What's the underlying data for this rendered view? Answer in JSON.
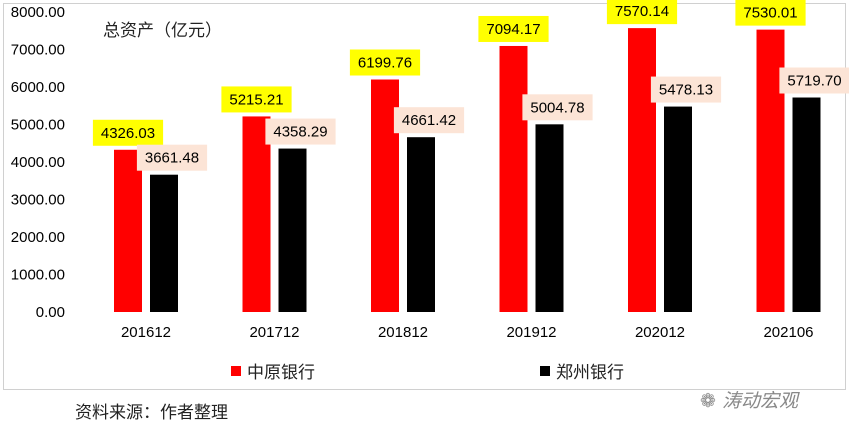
{
  "chart_data": {
    "type": "bar",
    "title": "总资产（亿元）",
    "categories": [
      "201612",
      "201712",
      "201812",
      "201912",
      "202012",
      "202106"
    ],
    "series": [
      {
        "name": "中原银行",
        "color": "#FF0000",
        "label_bg": "#FFFF00",
        "values": [
          4326.03,
          5215.21,
          6199.76,
          7094.17,
          7570.14,
          7530.01
        ]
      },
      {
        "name": "郑州银行",
        "color": "#000000",
        "label_bg": "#FCE4D6",
        "values": [
          3661.48,
          4358.29,
          4661.42,
          5004.78,
          5478.13,
          5719.7
        ]
      }
    ],
    "ylim": [
      0,
      8000
    ],
    "yticks": [
      "0.00",
      "1000.00",
      "2000.00",
      "3000.00",
      "4000.00",
      "5000.00",
      "6000.00",
      "7000.00",
      "8000.00"
    ],
    "grid": false,
    "legend": "bottom"
  },
  "source": "资料来源：作者整理",
  "watermark": "涛动宏观"
}
